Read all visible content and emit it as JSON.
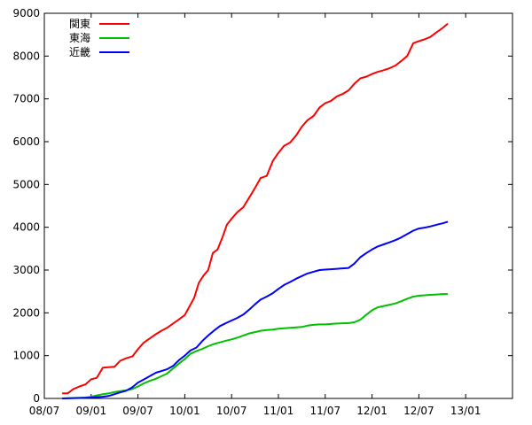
{
  "chart_data": {
    "type": "line",
    "title": "",
    "xlabel": "",
    "ylabel": "",
    "ylim": [
      0,
      9000
    ],
    "yticks": [
      0,
      1000,
      2000,
      3000,
      4000,
      5000,
      6000,
      7000,
      8000,
      9000
    ],
    "ytick_labels": [
      "0",
      "1000",
      "2000",
      "3000",
      "4000",
      "5000",
      "6000",
      "7000",
      "8000",
      "9000"
    ],
    "xtick_labels": [
      "08/07",
      "09/01",
      "09/07",
      "10/01",
      "10/07",
      "11/01",
      "11/07",
      "12/01",
      "12/07",
      "13/01"
    ],
    "x_unit": "month-index from 08/07",
    "xlim": [
      0,
      10
    ],
    "grid": false,
    "legend_position": "top-left",
    "series": [
      {
        "name": "関東",
        "color": "#ff0000",
        "points": [
          [
            0.38,
            120
          ],
          [
            0.5,
            120
          ],
          [
            0.62,
            220
          ],
          [
            0.75,
            280
          ],
          [
            0.88,
            330
          ],
          [
            1.0,
            450
          ],
          [
            1.12,
            480
          ],
          [
            1.25,
            720
          ],
          [
            1.5,
            740
          ],
          [
            1.62,
            880
          ],
          [
            1.75,
            940
          ],
          [
            1.88,
            980
          ],
          [
            2.0,
            1150
          ],
          [
            2.12,
            1300
          ],
          [
            2.25,
            1400
          ],
          [
            2.38,
            1500
          ],
          [
            2.5,
            1580
          ],
          [
            2.62,
            1650
          ],
          [
            2.75,
            1750
          ],
          [
            2.88,
            1850
          ],
          [
            3.0,
            1950
          ],
          [
            3.1,
            2150
          ],
          [
            3.2,
            2350
          ],
          [
            3.3,
            2700
          ],
          [
            3.4,
            2870
          ],
          [
            3.5,
            3000
          ],
          [
            3.6,
            3400
          ],
          [
            3.7,
            3480
          ],
          [
            3.8,
            3750
          ],
          [
            3.9,
            4060
          ],
          [
            4.0,
            4200
          ],
          [
            4.12,
            4350
          ],
          [
            4.25,
            4470
          ],
          [
            4.38,
            4700
          ],
          [
            4.5,
            4920
          ],
          [
            4.62,
            5150
          ],
          [
            4.75,
            5200
          ],
          [
            4.88,
            5550
          ],
          [
            5.0,
            5740
          ],
          [
            5.12,
            5900
          ],
          [
            5.25,
            5980
          ],
          [
            5.38,
            6150
          ],
          [
            5.5,
            6350
          ],
          [
            5.62,
            6500
          ],
          [
            5.75,
            6600
          ],
          [
            5.88,
            6800
          ],
          [
            6.0,
            6900
          ],
          [
            6.12,
            6950
          ],
          [
            6.25,
            7060
          ],
          [
            6.38,
            7120
          ],
          [
            6.5,
            7200
          ],
          [
            6.62,
            7350
          ],
          [
            6.75,
            7480
          ],
          [
            6.88,
            7520
          ],
          [
            7.0,
            7580
          ],
          [
            7.12,
            7630
          ],
          [
            7.25,
            7670
          ],
          [
            7.38,
            7720
          ],
          [
            7.5,
            7780
          ],
          [
            7.62,
            7880
          ],
          [
            7.75,
            8000
          ],
          [
            7.88,
            8300
          ],
          [
            8.0,
            8350
          ],
          [
            8.12,
            8390
          ],
          [
            8.25,
            8450
          ],
          [
            8.38,
            8560
          ],
          [
            8.5,
            8650
          ],
          [
            8.62,
            8760
          ]
        ]
      },
      {
        "name": "東海",
        "color": "#00c000",
        "points": [
          [
            0.38,
            0
          ],
          [
            0.62,
            10
          ],
          [
            0.88,
            20
          ],
          [
            1.0,
            40
          ],
          [
            1.12,
            70
          ],
          [
            1.25,
            100
          ],
          [
            1.38,
            120
          ],
          [
            1.5,
            150
          ],
          [
            1.62,
            170
          ],
          [
            1.75,
            190
          ],
          [
            1.88,
            220
          ],
          [
            2.0,
            280
          ],
          [
            2.12,
            350
          ],
          [
            2.25,
            410
          ],
          [
            2.38,
            460
          ],
          [
            2.5,
            520
          ],
          [
            2.62,
            580
          ],
          [
            2.75,
            700
          ],
          [
            2.88,
            820
          ],
          [
            3.0,
            920
          ],
          [
            3.12,
            1040
          ],
          [
            3.25,
            1110
          ],
          [
            3.38,
            1160
          ],
          [
            3.5,
            1220
          ],
          [
            3.62,
            1270
          ],
          [
            3.75,
            1310
          ],
          [
            3.88,
            1350
          ],
          [
            4.0,
            1380
          ],
          [
            4.12,
            1420
          ],
          [
            4.25,
            1470
          ],
          [
            4.38,
            1520
          ],
          [
            4.5,
            1550
          ],
          [
            4.62,
            1580
          ],
          [
            4.75,
            1600
          ],
          [
            4.88,
            1610
          ],
          [
            5.0,
            1630
          ],
          [
            5.25,
            1650
          ],
          [
            5.5,
            1670
          ],
          [
            5.62,
            1700
          ],
          [
            5.75,
            1720
          ],
          [
            5.88,
            1730
          ],
          [
            6.0,
            1730
          ],
          [
            6.25,
            1750
          ],
          [
            6.5,
            1760
          ],
          [
            6.62,
            1780
          ],
          [
            6.75,
            1840
          ],
          [
            6.88,
            1960
          ],
          [
            7.0,
            2060
          ],
          [
            7.12,
            2130
          ],
          [
            7.25,
            2160
          ],
          [
            7.38,
            2190
          ],
          [
            7.5,
            2220
          ],
          [
            7.62,
            2270
          ],
          [
            7.75,
            2330
          ],
          [
            7.88,
            2380
          ],
          [
            8.0,
            2400
          ],
          [
            8.12,
            2410
          ],
          [
            8.25,
            2420
          ],
          [
            8.38,
            2430
          ],
          [
            8.5,
            2440
          ],
          [
            8.62,
            2440
          ]
        ]
      },
      {
        "name": "近畿",
        "color": "#0000ff",
        "points": [
          [
            0.38,
            0
          ],
          [
            0.75,
            10
          ],
          [
            1.0,
            20
          ],
          [
            1.25,
            40
          ],
          [
            1.38,
            60
          ],
          [
            1.5,
            100
          ],
          [
            1.62,
            140
          ],
          [
            1.75,
            180
          ],
          [
            1.88,
            260
          ],
          [
            2.0,
            370
          ],
          [
            2.12,
            440
          ],
          [
            2.25,
            520
          ],
          [
            2.38,
            600
          ],
          [
            2.5,
            640
          ],
          [
            2.62,
            680
          ],
          [
            2.75,
            760
          ],
          [
            2.88,
            900
          ],
          [
            3.0,
            1000
          ],
          [
            3.12,
            1120
          ],
          [
            3.25,
            1190
          ],
          [
            3.38,
            1350
          ],
          [
            3.5,
            1470
          ],
          [
            3.62,
            1580
          ],
          [
            3.75,
            1690
          ],
          [
            3.88,
            1760
          ],
          [
            4.0,
            1820
          ],
          [
            4.12,
            1880
          ],
          [
            4.25,
            1960
          ],
          [
            4.38,
            2080
          ],
          [
            4.5,
            2200
          ],
          [
            4.62,
            2310
          ],
          [
            4.75,
            2380
          ],
          [
            4.88,
            2460
          ],
          [
            5.0,
            2560
          ],
          [
            5.12,
            2650
          ],
          [
            5.25,
            2720
          ],
          [
            5.38,
            2800
          ],
          [
            5.5,
            2860
          ],
          [
            5.62,
            2920
          ],
          [
            5.75,
            2960
          ],
          [
            5.88,
            3000
          ],
          [
            6.0,
            3010
          ],
          [
            6.25,
            3030
          ],
          [
            6.5,
            3050
          ],
          [
            6.62,
            3150
          ],
          [
            6.75,
            3300
          ],
          [
            6.88,
            3400
          ],
          [
            7.0,
            3480
          ],
          [
            7.12,
            3550
          ],
          [
            7.25,
            3600
          ],
          [
            7.38,
            3650
          ],
          [
            7.5,
            3700
          ],
          [
            7.62,
            3760
          ],
          [
            7.75,
            3840
          ],
          [
            7.88,
            3920
          ],
          [
            8.0,
            3970
          ],
          [
            8.12,
            3990
          ],
          [
            8.25,
            4020
          ],
          [
            8.38,
            4060
          ],
          [
            8.5,
            4090
          ],
          [
            8.62,
            4130
          ]
        ]
      }
    ]
  }
}
